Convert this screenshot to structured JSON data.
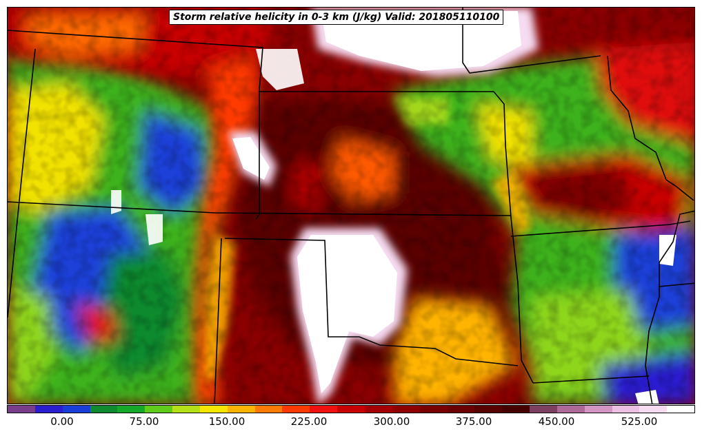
{
  "title": "Storm relative helicity in 0-3 km (J/kg) Valid: 201805110100",
  "colorbar": {
    "colors": [
      "#7a3d8c",
      "#2a1fd0",
      "#1a3fd8",
      "#0f8a2e",
      "#16a82a",
      "#5fcc1a",
      "#b4e01a",
      "#f5e600",
      "#ffb400",
      "#ff7a00",
      "#ff3a00",
      "#f01010",
      "#c80000",
      "#a50000",
      "#8e0000",
      "#7a0000",
      "#6a0000",
      "#580000",
      "#460000",
      "#7d4060",
      "#b06a9a",
      "#d596c6",
      "#ecc0e2",
      "#f6dcf2",
      "#ffffff"
    ],
    "tick_labels": [
      "0.00",
      "75.00",
      "150.00",
      "225.00",
      "300.00",
      "375.00",
      "450.00",
      "525.00"
    ]
  }
}
